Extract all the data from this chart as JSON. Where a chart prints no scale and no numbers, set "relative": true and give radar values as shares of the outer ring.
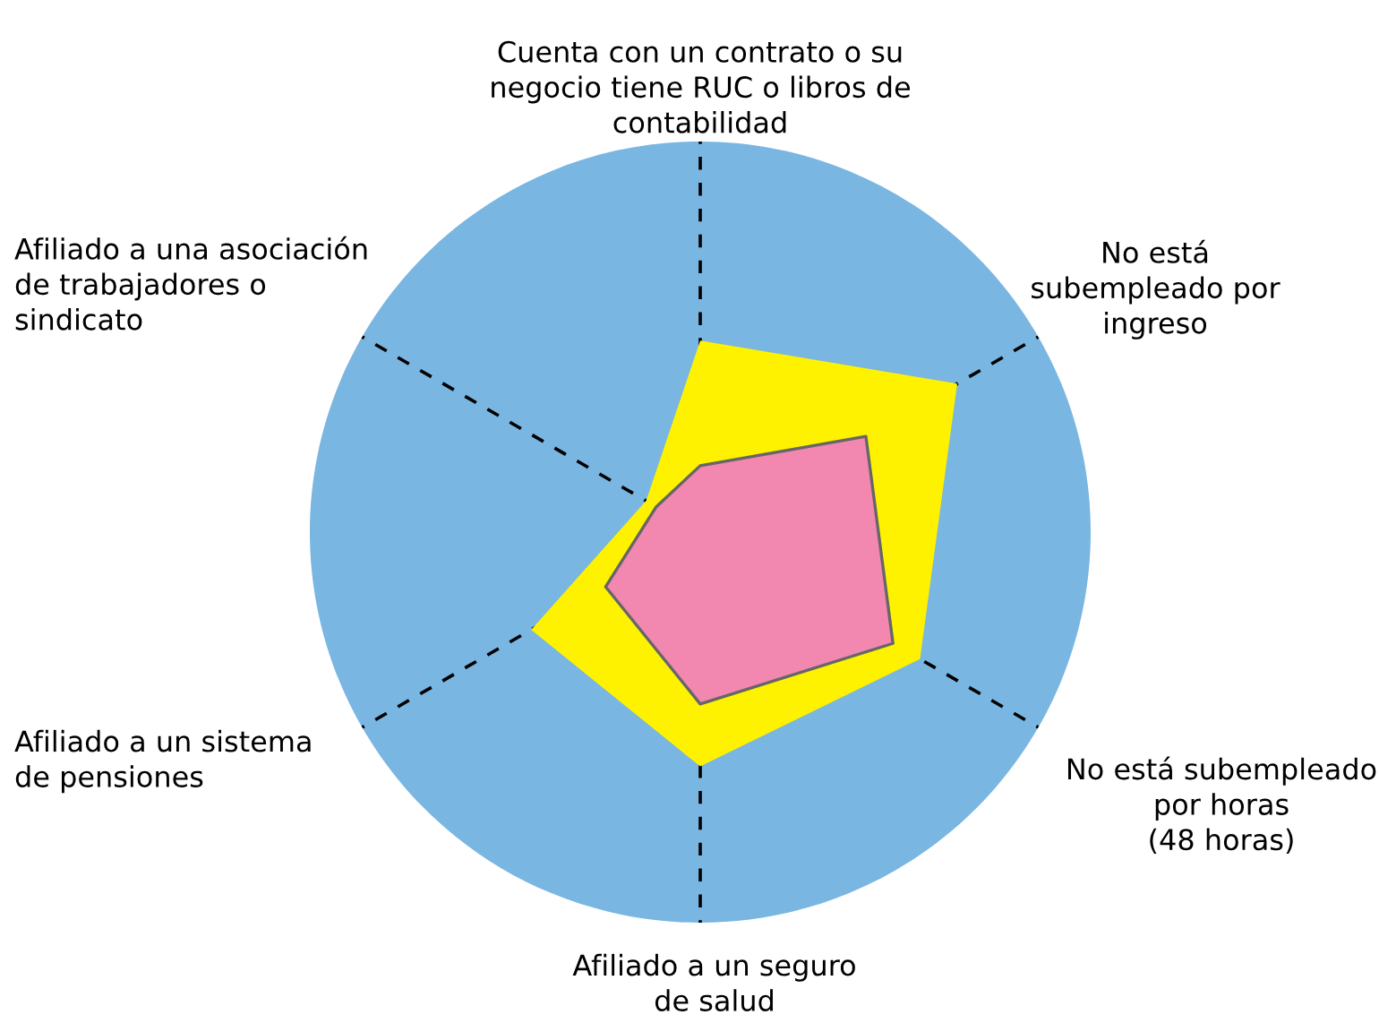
{
  "chart_data": {
    "type": "radar",
    "relative": true,
    "categories": [
      "Cuenta con un contrato o su\nnegocio tiene RUC o libros de\ncontabilidad",
      "No está\nsubempleado por\ningreso",
      "No está subempleado\npor horas\n(48 horas)",
      "Afiliado a un seguro\nde salud",
      "Afiliado a un sistema\nde pensiones",
      "Afiliado a una asociación\nde trabajadores o\nsindicato"
    ],
    "series": [
      {
        "color": "#fff200",
        "values": [
          0.49,
          0.76,
          0.65,
          0.6,
          0.5,
          0.16
        ]
      },
      {
        "color": "#f287b0",
        "values": [
          0.17,
          0.49,
          0.57,
          0.44,
          0.28,
          0.13
        ]
      }
    ]
  }
}
